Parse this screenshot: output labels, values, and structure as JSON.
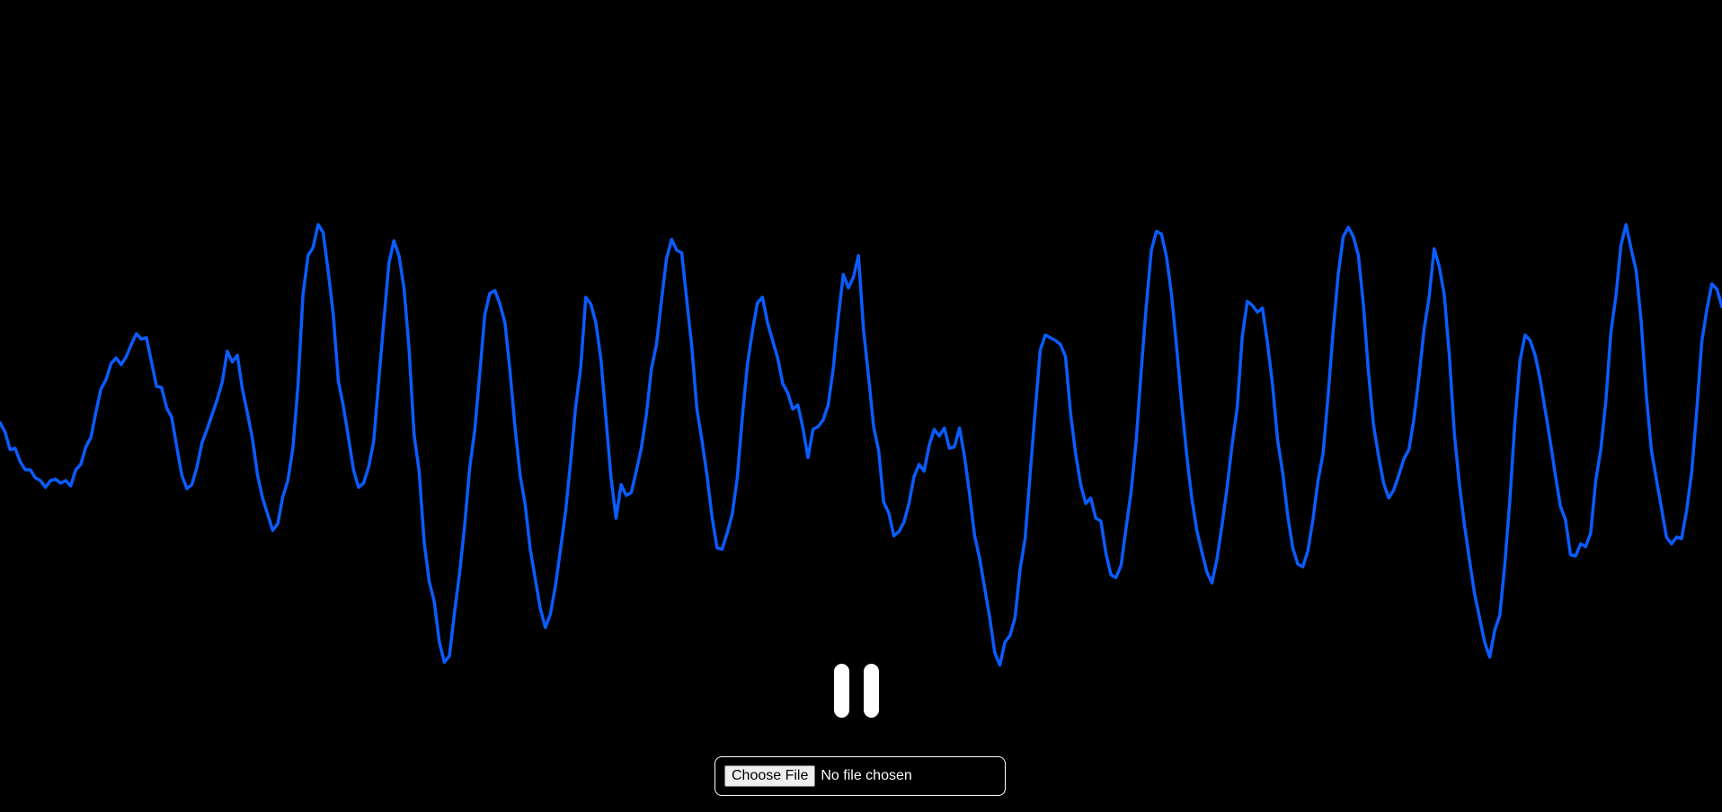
{
  "visualizer": {
    "wave_color": "#0a5cff",
    "background_color": "#000000",
    "samples": [
      3,
      -4,
      -17,
      -16,
      -26,
      -32,
      -32,
      -38,
      -40,
      -45,
      -40,
      -39,
      -42,
      -40,
      -44,
      -32,
      -28,
      -15,
      -8,
      11,
      28,
      35,
      47,
      51,
      46,
      52,
      61,
      69,
      65,
      66,
      48,
      30,
      29,
      14,
      7,
      -15,
      -36,
      -46,
      -43,
      -30,
      -12,
      -2,
      9,
      20,
      33,
      56,
      48,
      53,
      28,
      10,
      -9,
      -36,
      -53,
      -65,
      -77,
      -72,
      -52,
      -40,
      -16,
      30,
      98,
      127,
      133,
      150,
      144,
      115,
      83,
      34,
      15,
      -8,
      -32,
      -45,
      -42,
      -30,
      -11,
      34,
      78,
      121,
      138,
      127,
      103,
      58,
      -6,
      -33,
      -86,
      -115,
      -130,
      -160,
      -175,
      -170,
      -138,
      -109,
      -74,
      -31,
      -3,
      39,
      83,
      99,
      101,
      91,
      77,
      41,
      -1,
      -36,
      -58,
      -91,
      -113,
      -135,
      -149,
      -139,
      -118,
      -91,
      -63,
      -26,
      15,
      44,
      96,
      91,
      77,
      50,
      6,
      -38,
      -68,
      -43,
      -51,
      -49,
      -33,
      -16,
      9,
      43,
      61,
      94,
      125,
      139,
      131,
      129,
      94,
      59,
      13,
      -10,
      -36,
      -67,
      -90,
      -91,
      -79,
      -65,
      -38,
      7,
      46,
      71,
      92,
      96,
      77,
      64,
      51,
      32,
      25,
      13,
      16,
      -1,
      -23,
      -2,
      0,
      5,
      16,
      43,
      81,
      113,
      103,
      111,
      127,
      72,
      37,
      0,
      -18,
      -56,
      -64,
      -81,
      -78,
      -71,
      -57,
      -37,
      -28,
      -33,
      -14,
      -2,
      -7,
      -1,
      -16,
      -15,
      -1,
      -22,
      -50,
      -81,
      -98,
      -120,
      -142,
      -168,
      -177,
      -160,
      -155,
      -142,
      -106,
      -83,
      -35,
      12,
      57,
      68,
      66,
      64,
      61,
      52,
      10,
      -20,
      -43,
      -57,
      -53,
      -68,
      -70,
      -94,
      -110,
      -112,
      -103,
      -75,
      -48,
      -10,
      42,
      90,
      131,
      145,
      143,
      126,
      98,
      59,
      17,
      -21,
      -53,
      -77,
      -93,
      -108,
      -116,
      -98,
      -73,
      -45,
      -13,
      14,
      67,
      93,
      90,
      85,
      88,
      62,
      31,
      -10,
      -34,
      -66,
      -90,
      -102,
      -104,
      -92,
      -69,
      -40,
      -20,
      23,
      71,
      113,
      141,
      148,
      141,
      127,
      90,
      40,
      1,
      -22,
      -42,
      -53,
      -47,
      -36,
      -24,
      -17,
      6,
      37,
      72,
      96,
      132,
      119,
      98,
      53,
      -5,
      -43,
      -73,
      -99,
      -124,
      -142,
      -160,
      -171,
      -151,
      -140,
      -102,
      -54,
      4,
      49,
      68,
      64,
      53,
      35,
      12,
      -11,
      -36,
      -59,
      -69,
      -95,
      -96,
      -87,
      -89,
      -79,
      -40,
      -17,
      19,
      70,
      97,
      135,
      150,
      132,
      116,
      78,
      24,
      -17,
      -39,
      -60,
      -82,
      -87,
      -82,
      -83,
      -62,
      -34,
      12,
      63,
      87,
      106,
      102,
      89
    ]
  },
  "controls": {
    "pause_button_label": "Pause"
  },
  "file_picker": {
    "button_label": "Choose File",
    "status_text": "No file chosen"
  }
}
